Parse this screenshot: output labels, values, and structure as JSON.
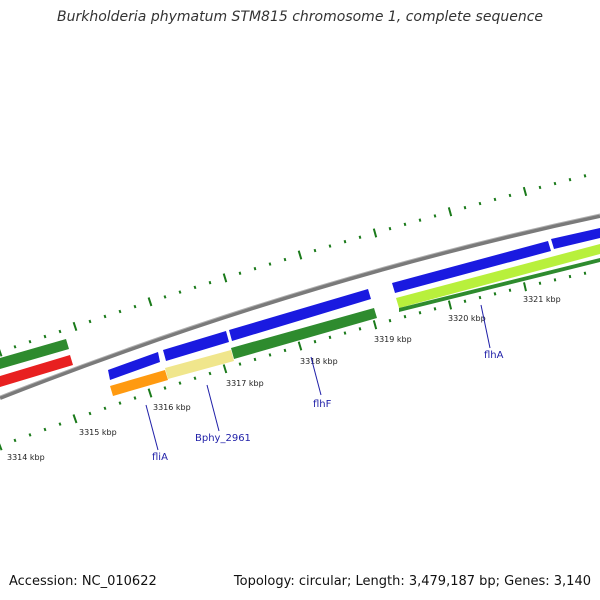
{
  "title": "Burkholderia phymatum STM815 chromosome 1, complete sequence",
  "accession": "Accession: NC_010622",
  "summary": "Topology: circular; Length: 3,479,187 bp; Genes: 3,140",
  "scale_labels": [
    "3314 kbp",
    "3315 kbp",
    "3316 kbp",
    "3317 kbp",
    "3318 kbp",
    "3319 kbp",
    "3320 kbp",
    "3321 kbp"
  ],
  "gene_labels": [
    "fliA",
    "Bphy_2961",
    "flhF",
    "flhA"
  ],
  "colors": {
    "backbone": "#8a8a8a",
    "tick": "#1a7a1a",
    "blue_feature": "#1a1ae0",
    "green_feature": "#2e8b2e",
    "lightgreen_feature": "#b8f03c",
    "red_feature": "#e82020",
    "orange_feature": "#ff9a10",
    "khaki_feature": "#f0e68c",
    "label_color": "#1f1fa8"
  }
}
